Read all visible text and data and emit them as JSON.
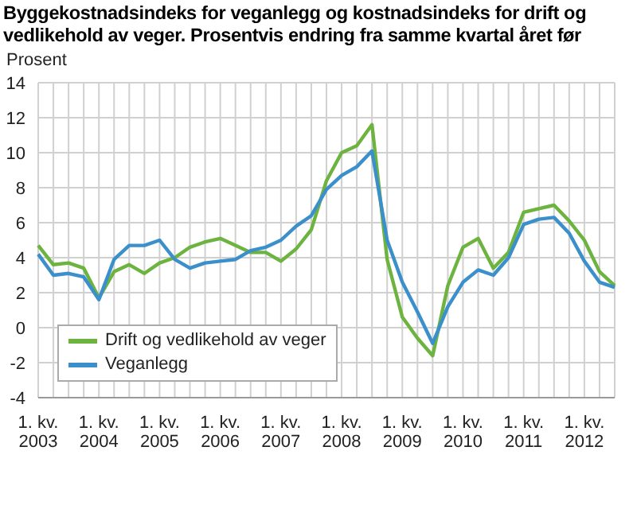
{
  "chart_data": {
    "type": "line",
    "title": "Byggekostnadsindeks for veganlegg og kostnadsindeks for drift og vedlikehold av veger. Prosentvis endring fra samme kvartal året før",
    "ylabel": "Prosent",
    "categories": [
      "1. kv. 2003",
      null,
      null,
      null,
      "1. kv. 2004",
      null,
      null,
      null,
      "1. kv. 2005",
      null,
      null,
      null,
      "1. kv. 2006",
      null,
      null,
      null,
      "1. kv. 2007",
      null,
      null,
      null,
      "1. kv. 2008",
      null,
      null,
      null,
      "1. kv. 2009",
      null,
      null,
      null,
      "1. kv. 2010",
      null,
      null,
      null,
      "1. kv. 2011",
      null,
      null,
      null,
      "1. kv. 2012",
      null,
      null
    ],
    "series": [
      {
        "name": "Drift og vedlikehold av veger",
        "color": "#6db33f",
        "values": [
          4.7,
          3.6,
          3.7,
          3.4,
          1.7,
          3.2,
          3.6,
          3.1,
          3.7,
          4.0,
          4.6,
          4.9,
          5.1,
          4.7,
          4.3,
          4.3,
          3.8,
          4.5,
          5.6,
          8.4,
          10.0,
          10.4,
          11.6,
          3.9,
          0.6,
          -0.6,
          -1.6,
          2.4,
          4.6,
          5.1,
          3.4,
          4.3,
          6.6,
          6.8,
          7.0,
          6.1,
          5.0,
          3.2,
          2.4
        ]
      },
      {
        "name": "Veganlegg",
        "color": "#3b8fcb",
        "values": [
          4.2,
          3.0,
          3.1,
          2.9,
          1.6,
          3.9,
          4.7,
          4.7,
          5.0,
          3.9,
          3.4,
          3.7,
          3.8,
          3.9,
          4.4,
          4.6,
          5.0,
          5.8,
          6.4,
          7.9,
          8.7,
          9.2,
          10.1,
          5.0,
          2.6,
          0.9,
          -0.9,
          1.2,
          2.6,
          3.3,
          3.0,
          4.0,
          5.9,
          6.2,
          6.3,
          5.4,
          3.8,
          2.6,
          2.3
        ]
      }
    ],
    "ylim": [
      -4,
      14
    ],
    "yticks": [
      -4,
      -2,
      0,
      2,
      4,
      6,
      8,
      10,
      12,
      14
    ],
    "grid": true,
    "legend": "bottom left",
    "marker": "none",
    "line_style": "solid"
  }
}
